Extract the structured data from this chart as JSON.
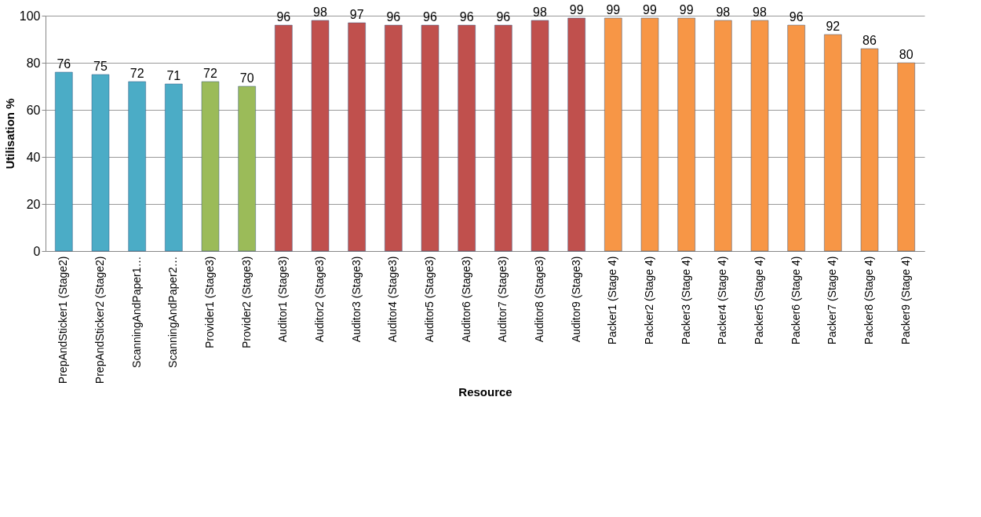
{
  "chart_data": {
    "type": "bar",
    "xlabel": "Resource",
    "ylabel": "Utilisation %",
    "categories": [
      "PrepAndSticker1 (Stage2)",
      "PrepAndSticker2 (Stage2)",
      "ScanningAndPaper1…",
      "ScanningAndPaper2…",
      "Provider1 (Stage3)",
      "Provider2 (Stage3)",
      "Auditor1 (Stage3)",
      "Auditor2 (Stage3)",
      "Auditor3 (Stage3)",
      "Auditor4 (Stage3)",
      "Auditor5 (Stage3)",
      "Auditor6 (Stage3)",
      "Auditor7 (Stage3)",
      "Auditor8 (Stage3)",
      "Auditor9 (Stage3)",
      "Packer1 (Stage 4)",
      "Packer2 (Stage 4)",
      "Packer3 (Stage 4)",
      "Packer4 (Stage 4)",
      "Packer5 (Stage 4)",
      "Packer6 (Stage 4)",
      "Packer7 (Stage 4)",
      "Packer8 (Stage 4)",
      "Packer9 (Stage 4)"
    ],
    "values": [
      76,
      75,
      72,
      71,
      72,
      70,
      96,
      98,
      97,
      96,
      96,
      96,
      96,
      98,
      99,
      99,
      99,
      99,
      98,
      98,
      96,
      92,
      86,
      80
    ],
    "colors": [
      "#4bacc6",
      "#4bacc6",
      "#4bacc6",
      "#4bacc6",
      "#9bbb59",
      "#9bbb59",
      "#c0504d",
      "#c0504d",
      "#c0504d",
      "#c0504d",
      "#c0504d",
      "#c0504d",
      "#c0504d",
      "#c0504d",
      "#c0504d",
      "#f79646",
      "#f79646",
      "#f79646",
      "#f79646",
      "#f79646",
      "#f79646",
      "#f79646",
      "#f79646",
      "#f79646"
    ],
    "ylim": [
      0,
      100
    ],
    "yticks": [
      0,
      20,
      40,
      60,
      80,
      100
    ],
    "grid": "y",
    "data_labels": true
  }
}
